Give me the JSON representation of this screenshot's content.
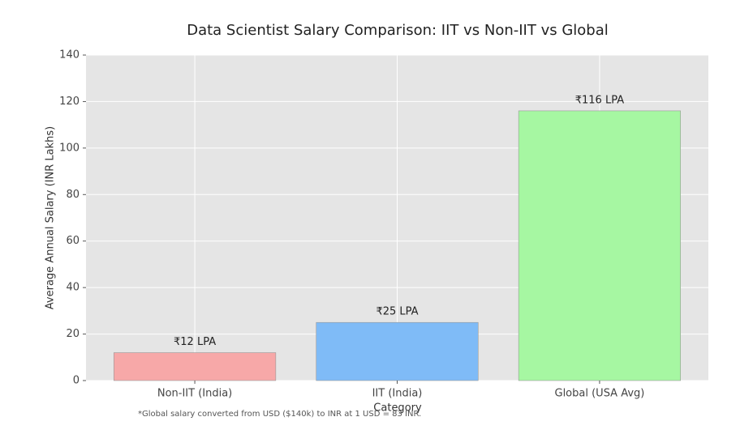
{
  "chart_data": {
    "type": "bar",
    "title": "Data Scientist Salary Comparison: IIT vs Non-IIT vs Global",
    "x_label": "Category",
    "y_label": "Average Annual Salary (INR Lakhs)",
    "footnote": "*Global salary converted from USD ($140k) to INR at 1 USD = 83 INR.",
    "categories": [
      "Non-IIT (India)",
      "IIT (India)",
      "Global (USA Avg)"
    ],
    "values": [
      12,
      25,
      116
    ],
    "value_labels": [
      "₹12 LPA",
      "₹25 LPA",
      "₹116 LPA"
    ],
    "colors": [
      "#f7a8a8",
      "#7fbbf7",
      "#a6f7a2"
    ],
    "ylim": [
      0,
      140
    ],
    "yticks": [
      0,
      20,
      40,
      60,
      80,
      100,
      120,
      140
    ],
    "grid": true
  }
}
